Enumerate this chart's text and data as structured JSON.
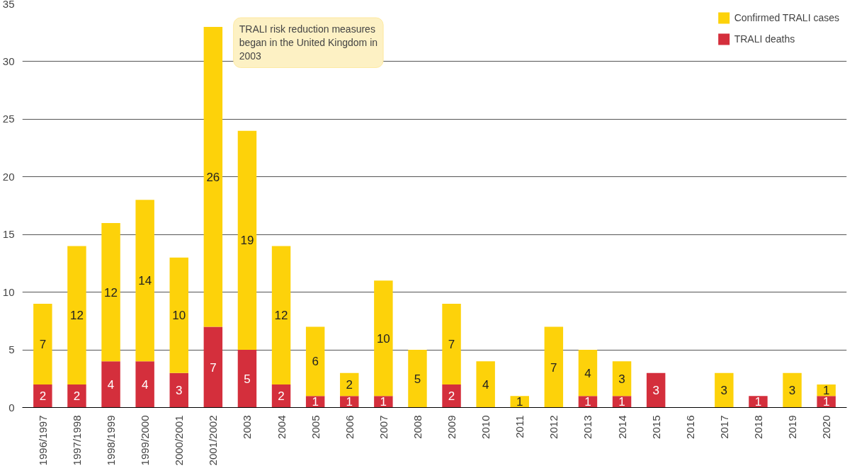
{
  "chart_data": {
    "type": "bar",
    "stacked": true,
    "categories": [
      "1996/1997",
      "1997/1998",
      "1998/1999",
      "1999/2000",
      "2000/2001",
      "2001/2002",
      "2003",
      "2004",
      "2005",
      "2006",
      "2007",
      "2008",
      "2009",
      "2010",
      "2011",
      "2012",
      "2013",
      "2014",
      "2015",
      "2016",
      "2017",
      "2018",
      "2019",
      "2020"
    ],
    "series": [
      {
        "name": "TRALI deaths",
        "color": "#d42f3c",
        "values": [
          2,
          2,
          4,
          4,
          3,
          7,
          5,
          2,
          1,
          1,
          1,
          null,
          2,
          null,
          null,
          null,
          1,
          1,
          3,
          null,
          null,
          1,
          null,
          1
        ]
      },
      {
        "name": "Confirmed TRALI cases",
        "color": "#fdd20a",
        "values": [
          7,
          12,
          12,
          14,
          10,
          26,
          19,
          12,
          6,
          2,
          10,
          5,
          7,
          4,
          1,
          7,
          4,
          3,
          null,
          null,
          3,
          null,
          3,
          1
        ]
      }
    ],
    "data_labels": true,
    "ylim": [
      0,
      35
    ],
    "yticks": [
      0,
      5,
      10,
      15,
      20,
      25,
      30,
      35
    ],
    "grid": "y",
    "legend": "top right",
    "annotations": [
      "TRALI risk reduction measures began in the United Kingdom in 2003"
    ]
  }
}
